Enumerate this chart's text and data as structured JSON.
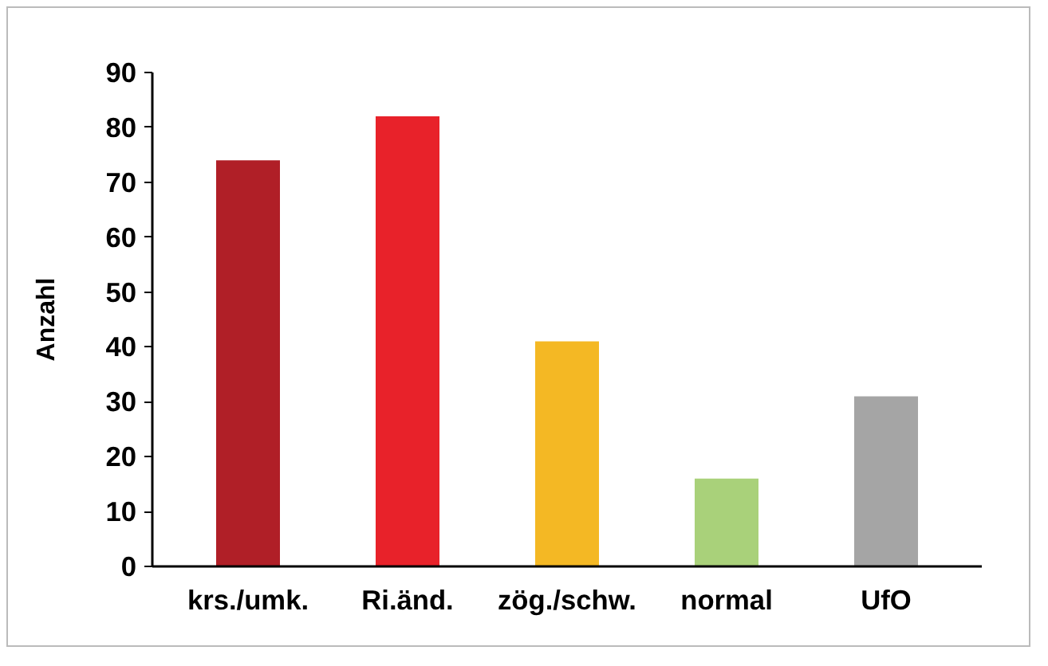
{
  "chart_data": {
    "type": "bar",
    "ylabel": "Anzahl",
    "categories": [
      "krs./umk.",
      "Ri.änd.",
      "zög./schw.",
      "normal",
      "UfO"
    ],
    "values": [
      74,
      82,
      41,
      16,
      31
    ],
    "colors": [
      "#b01f27",
      "#e8222a",
      "#f4b824",
      "#a9d17a",
      "#a5a5a5"
    ],
    "ylim": [
      0,
      90
    ],
    "yticks": [
      0,
      10,
      20,
      30,
      40,
      50,
      60,
      70,
      80,
      90
    ],
    "grid": false
  }
}
